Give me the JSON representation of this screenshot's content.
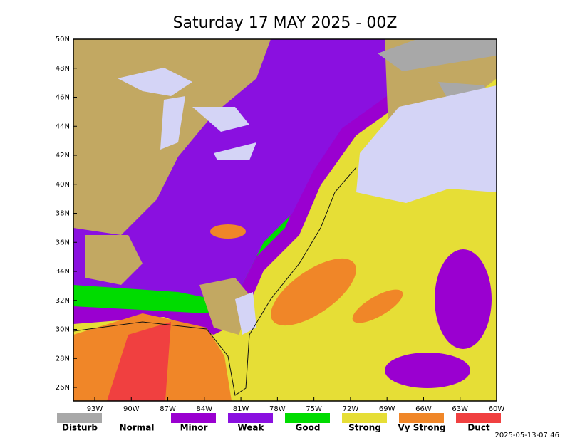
{
  "title": "Saturday 17 MAY 2025 - 00Z",
  "latitude_labels": [
    "50N",
    "48N",
    "46N",
    "44N",
    "42N",
    "40N",
    "38N",
    "36N",
    "34N",
    "32N",
    "30N",
    "28N",
    "26N"
  ],
  "longitude_labels": [
    "93W",
    "90W",
    "87W",
    "84W",
    "81W",
    "78W",
    "75W",
    "72W",
    "69W",
    "66W",
    "63W",
    "60W"
  ],
  "legend": [
    {
      "label": "Disturb",
      "color": "#a8a8a8"
    },
    {
      "label": "Normal",
      "color": "#ffffff"
    },
    {
      "label": "Minor",
      "color": "#9a00d0"
    },
    {
      "label": "Weak",
      "color": "#8a10e0"
    },
    {
      "label": "Good",
      "color": "#00dc00"
    },
    {
      "label": "Strong",
      "color": "#e6de36"
    },
    {
      "label": "Vy Strong",
      "color": "#f08628"
    },
    {
      "label": "Duct",
      "color": "#f04040"
    }
  ],
  "timestamp": "2025-05-13-07:46"
}
